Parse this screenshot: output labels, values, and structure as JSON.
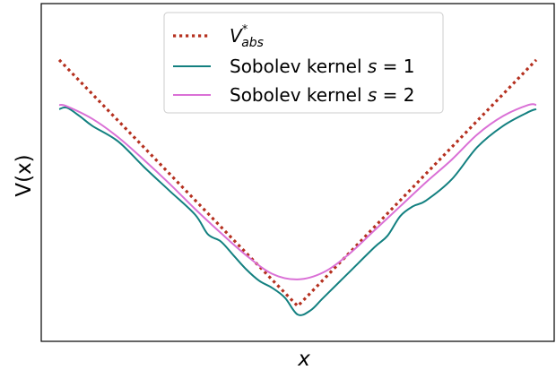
{
  "chart_data": {
    "type": "line",
    "title": "",
    "xlabel": "x",
    "ylabel": "V(x)",
    "xlim": [
      -1.0,
      1.0
    ],
    "ylim": [
      0.0,
      1.2
    ],
    "grid": false,
    "legend_position": "upper-center",
    "x_ticks": "none",
    "y_ticks": "none",
    "series": [
      {
        "name": "V*abs",
        "name_main": "V",
        "name_sup": "*",
        "name_sub": "abs",
        "color": "#b5301f",
        "style": "dotted",
        "x": [
          -0.93,
          0.0,
          0.93
        ],
        "y": [
          1.0,
          0.125,
          1.0
        ]
      },
      {
        "name": "Sobolev kernel s = 1",
        "name_prefix": "Sobolev kernel ",
        "name_var": "s",
        "name_suffix": " = 1",
        "color": "#138080",
        "style": "solid",
        "x": [
          -0.93,
          -0.9,
          -0.85,
          -0.8,
          -0.7,
          -0.6,
          -0.5,
          -0.4,
          -0.35,
          -0.3,
          -0.25,
          -0.2,
          -0.15,
          -0.1,
          -0.05,
          0.0,
          0.05,
          0.1,
          0.2,
          0.3,
          0.35,
          0.4,
          0.45,
          0.5,
          0.6,
          0.7,
          0.8,
          0.9,
          0.93
        ],
        "y": [
          0.825,
          0.83,
          0.8,
          0.765,
          0.71,
          0.62,
          0.535,
          0.45,
          0.38,
          0.355,
          0.305,
          0.255,
          0.215,
          0.19,
          0.155,
          0.095,
          0.11,
          0.155,
          0.245,
          0.335,
          0.375,
          0.445,
          0.48,
          0.5,
          0.575,
          0.69,
          0.765,
          0.815,
          0.825
        ]
      },
      {
        "name": "Sobolev kernel s = 2",
        "name_prefix": "Sobolev kernel ",
        "name_var": "s",
        "name_suffix": " = 2",
        "color": "#da70d6",
        "style": "solid",
        "x": [
          -0.93,
          -0.9,
          -0.8,
          -0.7,
          -0.6,
          -0.5,
          -0.4,
          -0.3,
          -0.2,
          -0.1,
          0.0,
          0.1,
          0.2,
          0.3,
          0.4,
          0.5,
          0.6,
          0.7,
          0.8,
          0.9,
          0.93
        ],
        "y": [
          0.84,
          0.835,
          0.79,
          0.725,
          0.645,
          0.56,
          0.47,
          0.385,
          0.305,
          0.24,
          0.22,
          0.245,
          0.31,
          0.395,
          0.48,
          0.565,
          0.645,
          0.735,
          0.8,
          0.84,
          0.84
        ]
      }
    ]
  }
}
